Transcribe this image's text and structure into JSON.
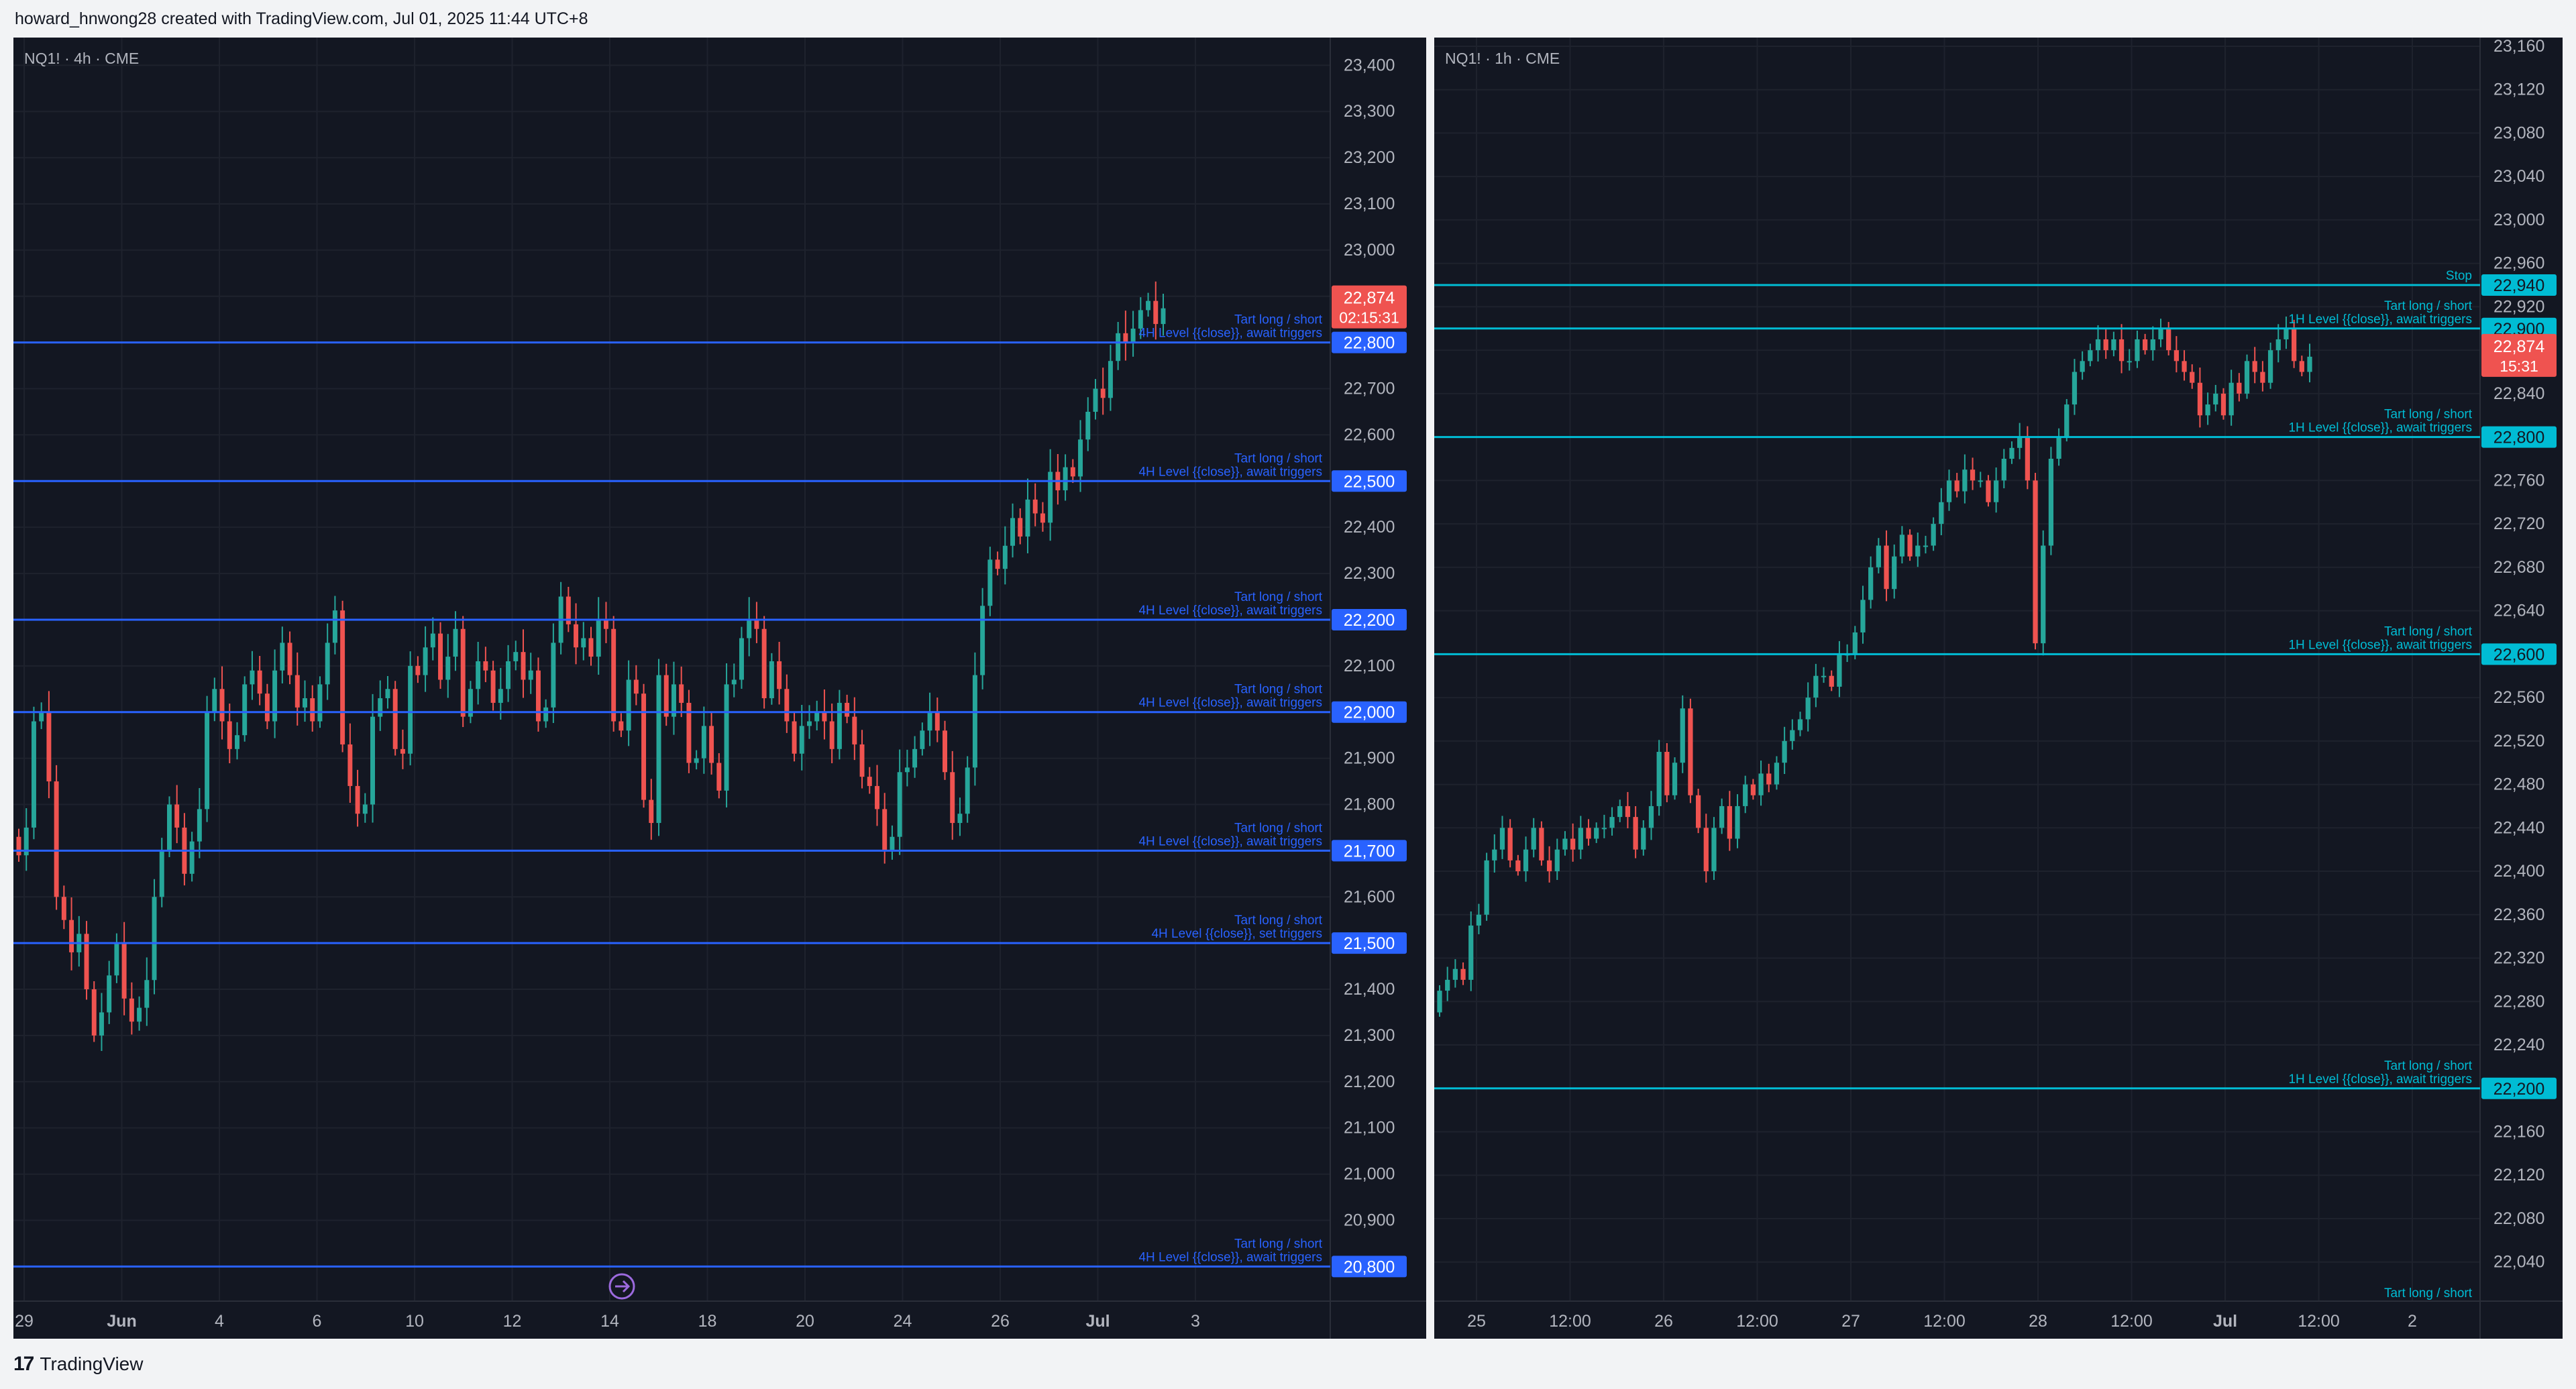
{
  "header": {
    "caption": "howard_hnwong28 created with TradingView.com, Jul 01, 2025 11:44 UTC+8"
  },
  "footer": {
    "brand": "TradingView",
    "brand_mark": "17"
  },
  "colors": {
    "background": "#131722",
    "grid": "#1e222d",
    "up": "#26a69a",
    "down": "#ef5350",
    "level_blue": "#2962ff",
    "level_cyan": "#00bcd4",
    "text": "#b2b5be"
  },
  "panes": [
    {
      "symbol_label": "NQ1! · 4h · CME",
      "last_price": "22,874",
      "countdown": "02:15:31",
      "price_axis": {
        "labels": [
          "23,400",
          "23,300",
          "23,200",
          "23,100",
          "23,000",
          "22,900",
          "22,800",
          "22,700",
          "22,600",
          "22,500",
          "22,400",
          "22,300",
          "22,200",
          "22,100",
          "22,000",
          "21,900",
          "21,800",
          "21,700",
          "21,600",
          "21,500",
          "21,400",
          "21,300",
          "21,200",
          "21,100",
          "21,000",
          "20,900",
          "20,800"
        ],
        "range": [
          20725,
          23460
        ]
      },
      "time_axis": [
        "29",
        "Jun",
        "4",
        "6",
        "10",
        "12",
        "14",
        "18",
        "20",
        "24",
        "26",
        "Jul",
        "3"
      ],
      "levels": [
        {
          "price": 22800,
          "label": "22,800",
          "line1": "Tart long / short",
          "line2": "4H Level {{close}}, await triggers"
        },
        {
          "price": 22500,
          "label": "22,500",
          "line1": "Tart long / short",
          "line2": "4H Level {{close}}, await triggers"
        },
        {
          "price": 22200,
          "label": "22,200",
          "line1": "Tart long / short",
          "line2": "4H Level {{close}}, await triggers"
        },
        {
          "price": 22000,
          "label": "22,000",
          "line1": "Tart long / short",
          "line2": "4H Level {{close}}, await triggers"
        },
        {
          "price": 21700,
          "label": "21,700",
          "line1": "Tart long / short",
          "line2": "4H Level {{close}}, await triggers"
        },
        {
          "price": 21500,
          "label": "21,500",
          "line1": "Tart long / short",
          "line2": "4H Level {{close}}, set triggers"
        },
        {
          "price": 20800,
          "label": "20,800",
          "line1": "Tart long / short",
          "line2": "4H Level {{close}}, await triggers"
        }
      ]
    },
    {
      "symbol_label": "NQ1! · 1h · CME",
      "last_price": "22,874",
      "countdown": "15:31",
      "price_axis": {
        "labels": [
          "23,160",
          "23,120",
          "23,080",
          "23,040",
          "23,000",
          "22,960",
          "22,920",
          "22,880",
          "22,840",
          "22,800",
          "22,760",
          "22,720",
          "22,680",
          "22,640",
          "22,600",
          "22,560",
          "22,520",
          "22,480",
          "22,440",
          "22,400",
          "22,360",
          "22,320",
          "22,280",
          "22,240",
          "22,200",
          "22,160",
          "22,120",
          "22,080",
          "22,040"
        ],
        "range": [
          22004,
          23168
        ]
      },
      "time_axis": [
        "25",
        "12:00",
        "26",
        "12:00",
        "27",
        "12:00",
        "28",
        "12:00",
        "Jul",
        "12:00",
        "2"
      ],
      "levels": [
        {
          "price": 22940,
          "label": "22,940",
          "line1": "Stop",
          "line2": ""
        },
        {
          "price": 22900,
          "label": "22,900",
          "line1": "Tart long / short",
          "line2": "1H Level {{close}}, await triggers"
        },
        {
          "price": 22800,
          "label": "22,800",
          "line1": "Tart long / short",
          "line2": "1H Level {{close}}, await triggers"
        },
        {
          "price": 22600,
          "label": "22,600",
          "line1": "Tart long / short",
          "line2": "1H Level {{close}}, await triggers"
        },
        {
          "price": 22200,
          "label": "22,200",
          "line1": "Tart long / short",
          "line2": "1H Level {{close}}, await triggers"
        }
      ],
      "bottom_note": "Tart long / short"
    }
  ],
  "chart_data": [
    {
      "type": "candlestick",
      "title": "NQ1! · 4h · CME",
      "y_range": [
        20725,
        23460
      ],
      "x_labels": [
        "29",
        "Jun",
        "4",
        "6",
        "10",
        "12",
        "14",
        "18",
        "20",
        "24",
        "26",
        "Jul",
        "3"
      ],
      "closes": [
        21690,
        21750,
        21980,
        22000,
        21850,
        21600,
        21550,
        21480,
        21520,
        21400,
        21300,
        21350,
        21430,
        21500,
        21380,
        21330,
        21360,
        21420,
        21600,
        21700,
        21800,
        21750,
        21650,
        21720,
        21790,
        22000,
        22050,
        21980,
        21920,
        21950,
        22060,
        22090,
        22040,
        21980,
        22090,
        22150,
        22080,
        22010,
        22030,
        21980,
        22060,
        22150,
        22220,
        21930,
        21840,
        21780,
        21800,
        21990,
        22030,
        22050,
        21920,
        21910,
        22100,
        22080,
        22140,
        22170,
        22070,
        22120,
        22180,
        21990,
        22050,
        22110,
        22090,
        22020,
        22050,
        22110,
        22130,
        22070,
        22090,
        21980,
        22010,
        22150,
        22250,
        22190,
        22140,
        22160,
        22120,
        22200,
        22180,
        21980,
        21960,
        22070,
        22040,
        21810,
        21760,
        22080,
        21990,
        22060,
        22020,
        21890,
        21900,
        21970,
        21890,
        21830,
        22060,
        22070,
        22160,
        22200,
        22180,
        22030,
        22110,
        22050,
        21980,
        21910,
        21970,
        21980,
        22000,
        21980,
        21920,
        22020,
        21990,
        21930,
        21860,
        21840,
        21790,
        21700,
        21730,
        21870,
        21880,
        21920,
        21960,
        22000,
        21960,
        21870,
        21760,
        21780,
        21880,
        22080,
        22230,
        22330,
        22310,
        22360,
        22420,
        22380,
        22460,
        22430,
        22410,
        22520,
        22480,
        22530,
        22510,
        22590,
        22650,
        22700,
        22680,
        22760,
        22820,
        22800,
        22830,
        22870,
        22890,
        22840,
        22874
      ]
    },
    {
      "type": "candlestick",
      "title": "NQ1! · 1h · CME",
      "y_range": [
        22004,
        23168
      ],
      "x_labels": [
        "25",
        "12:00",
        "26",
        "12:00",
        "27",
        "12:00",
        "28",
        "12:00",
        "Jul",
        "12:00",
        "2"
      ],
      "closes": [
        22290,
        22300,
        22310,
        22300,
        22350,
        22360,
        22410,
        22420,
        22440,
        22410,
        22400,
        22420,
        22440,
        22410,
        22400,
        22420,
        22430,
        22420,
        22440,
        22430,
        22440,
        22440,
        22450,
        22460,
        22450,
        22420,
        22440,
        22460,
        22510,
        22470,
        22500,
        22550,
        22470,
        22440,
        22400,
        22440,
        22460,
        22430,
        22460,
        22480,
        22470,
        22490,
        22480,
        22500,
        22520,
        22530,
        22540,
        22560,
        22580,
        22580,
        22570,
        22600,
        22600,
        22620,
        22650,
        22680,
        22700,
        22660,
        22690,
        22710,
        22690,
        22700,
        22700,
        22720,
        22740,
        22760,
        22750,
        22770,
        22760,
        22760,
        22740,
        22760,
        22780,
        22790,
        22800,
        22760,
        22610,
        22700,
        22780,
        22800,
        22830,
        22860,
        22870,
        22880,
        22890,
        22880,
        22890,
        22870,
        22870,
        22890,
        22880,
        22890,
        22900,
        22880,
        22870,
        22860,
        22850,
        22820,
        22830,
        22840,
        22820,
        22850,
        22840,
        22870,
        22860,
        22850,
        22880,
        22890,
        22900,
        22870,
        22860,
        22874
      ]
    }
  ]
}
